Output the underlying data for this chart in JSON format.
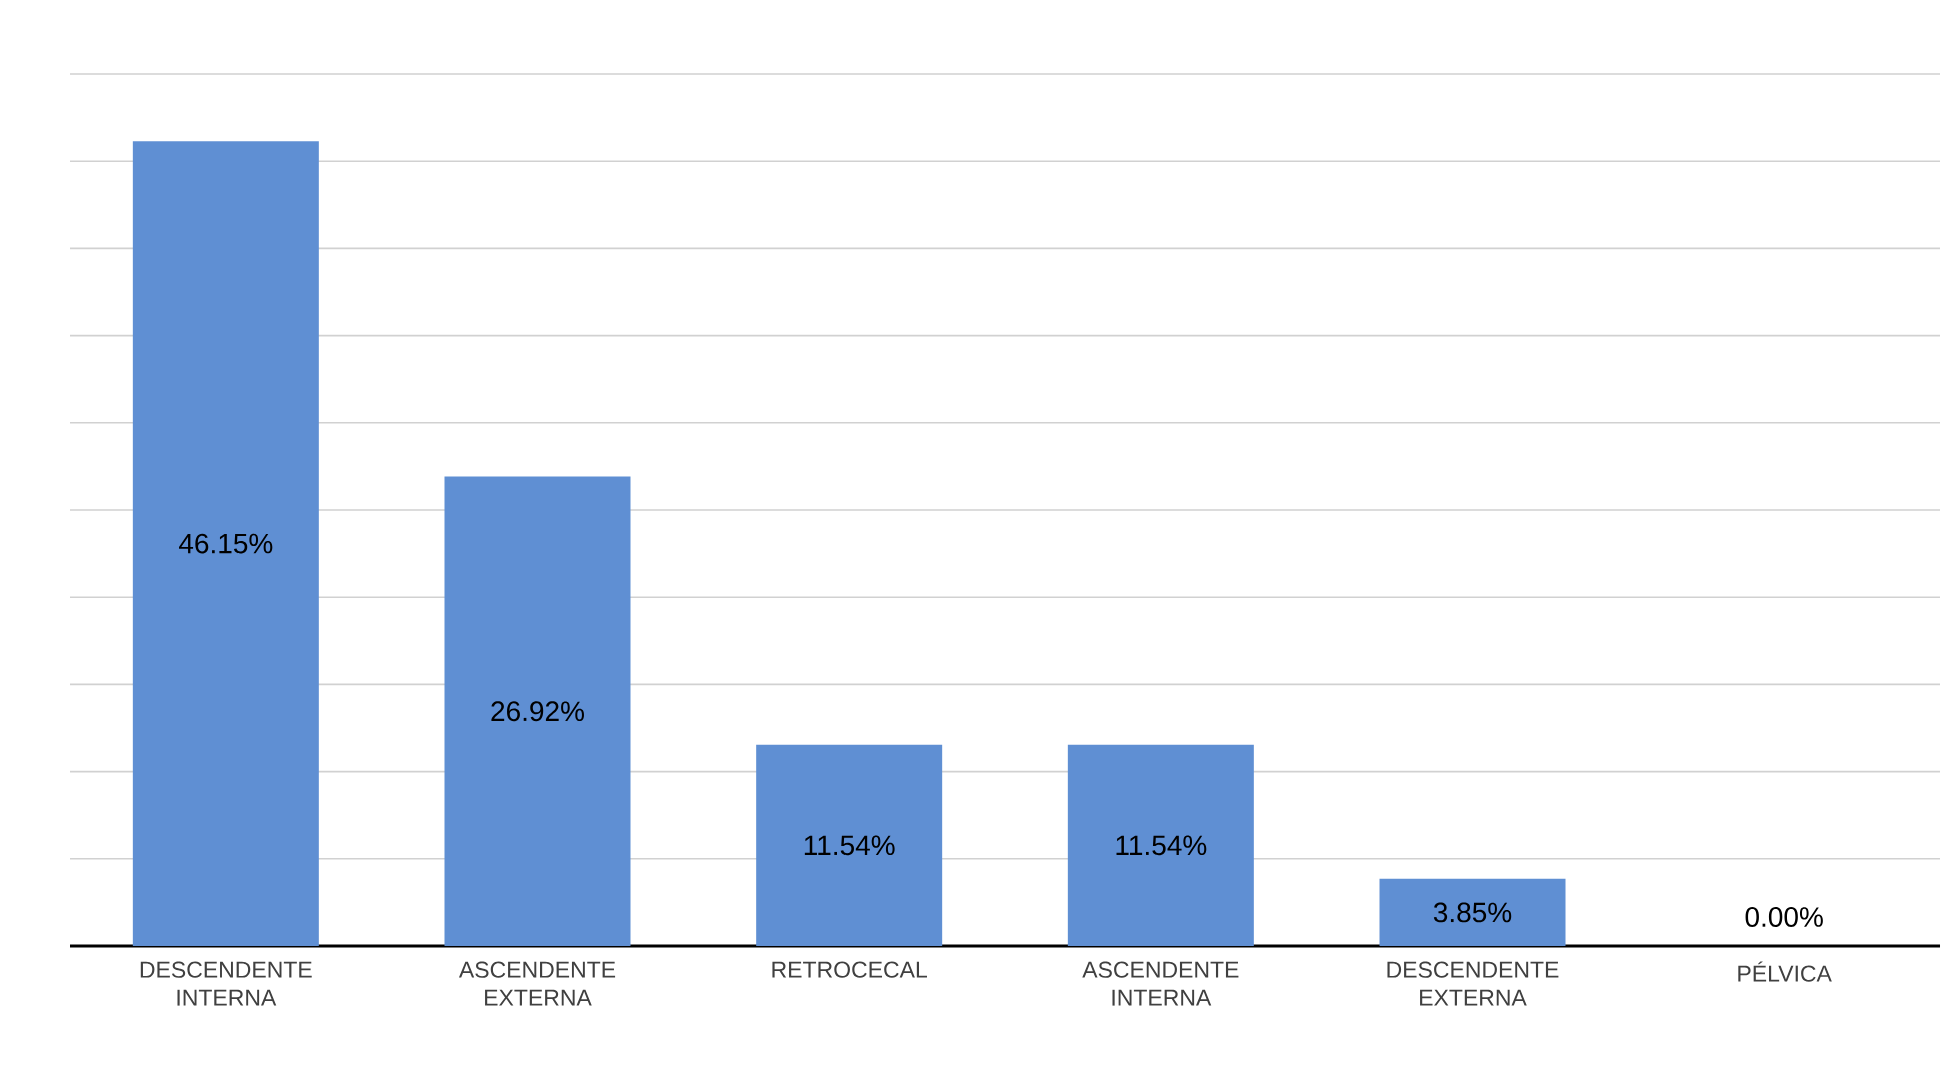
{
  "chart_data": {
    "type": "bar",
    "categories": [
      "DESCENDENTE INTERNA",
      "ASCENDENTE EXTERNA",
      "RETROCECAL",
      "ASCENDENTE INTERNA",
      "DESCENDENTE EXTERNA",
      "PÉLVICA"
    ],
    "values": [
      46.15,
      26.92,
      11.54,
      11.54,
      3.85,
      0.0
    ],
    "value_labels": [
      "46.15%",
      "26.92%",
      "11.54%",
      "11.54%",
      "3.85%",
      "0.00%"
    ],
    "color": "#5f8fd3",
    "ylim": [
      0,
      50
    ],
    "yticks": [
      {
        "value": 0,
        "label": null
      },
      {
        "value": 5,
        "label": null
      },
      {
        "value": 10,
        "label": null
      },
      {
        "value": 15,
        "label": null
      },
      {
        "value": 20,
        "label": null
      },
      {
        "value": 25,
        "label": null
      },
      {
        "value": 30,
        "label": null
      },
      {
        "value": 35,
        "label": null
      },
      {
        "value": 40,
        "label": null
      },
      {
        "value": 45,
        "label": null
      },
      {
        "value": 50,
        "label": null
      }
    ],
    "grid": "y",
    "tick_labels": "x"
  }
}
